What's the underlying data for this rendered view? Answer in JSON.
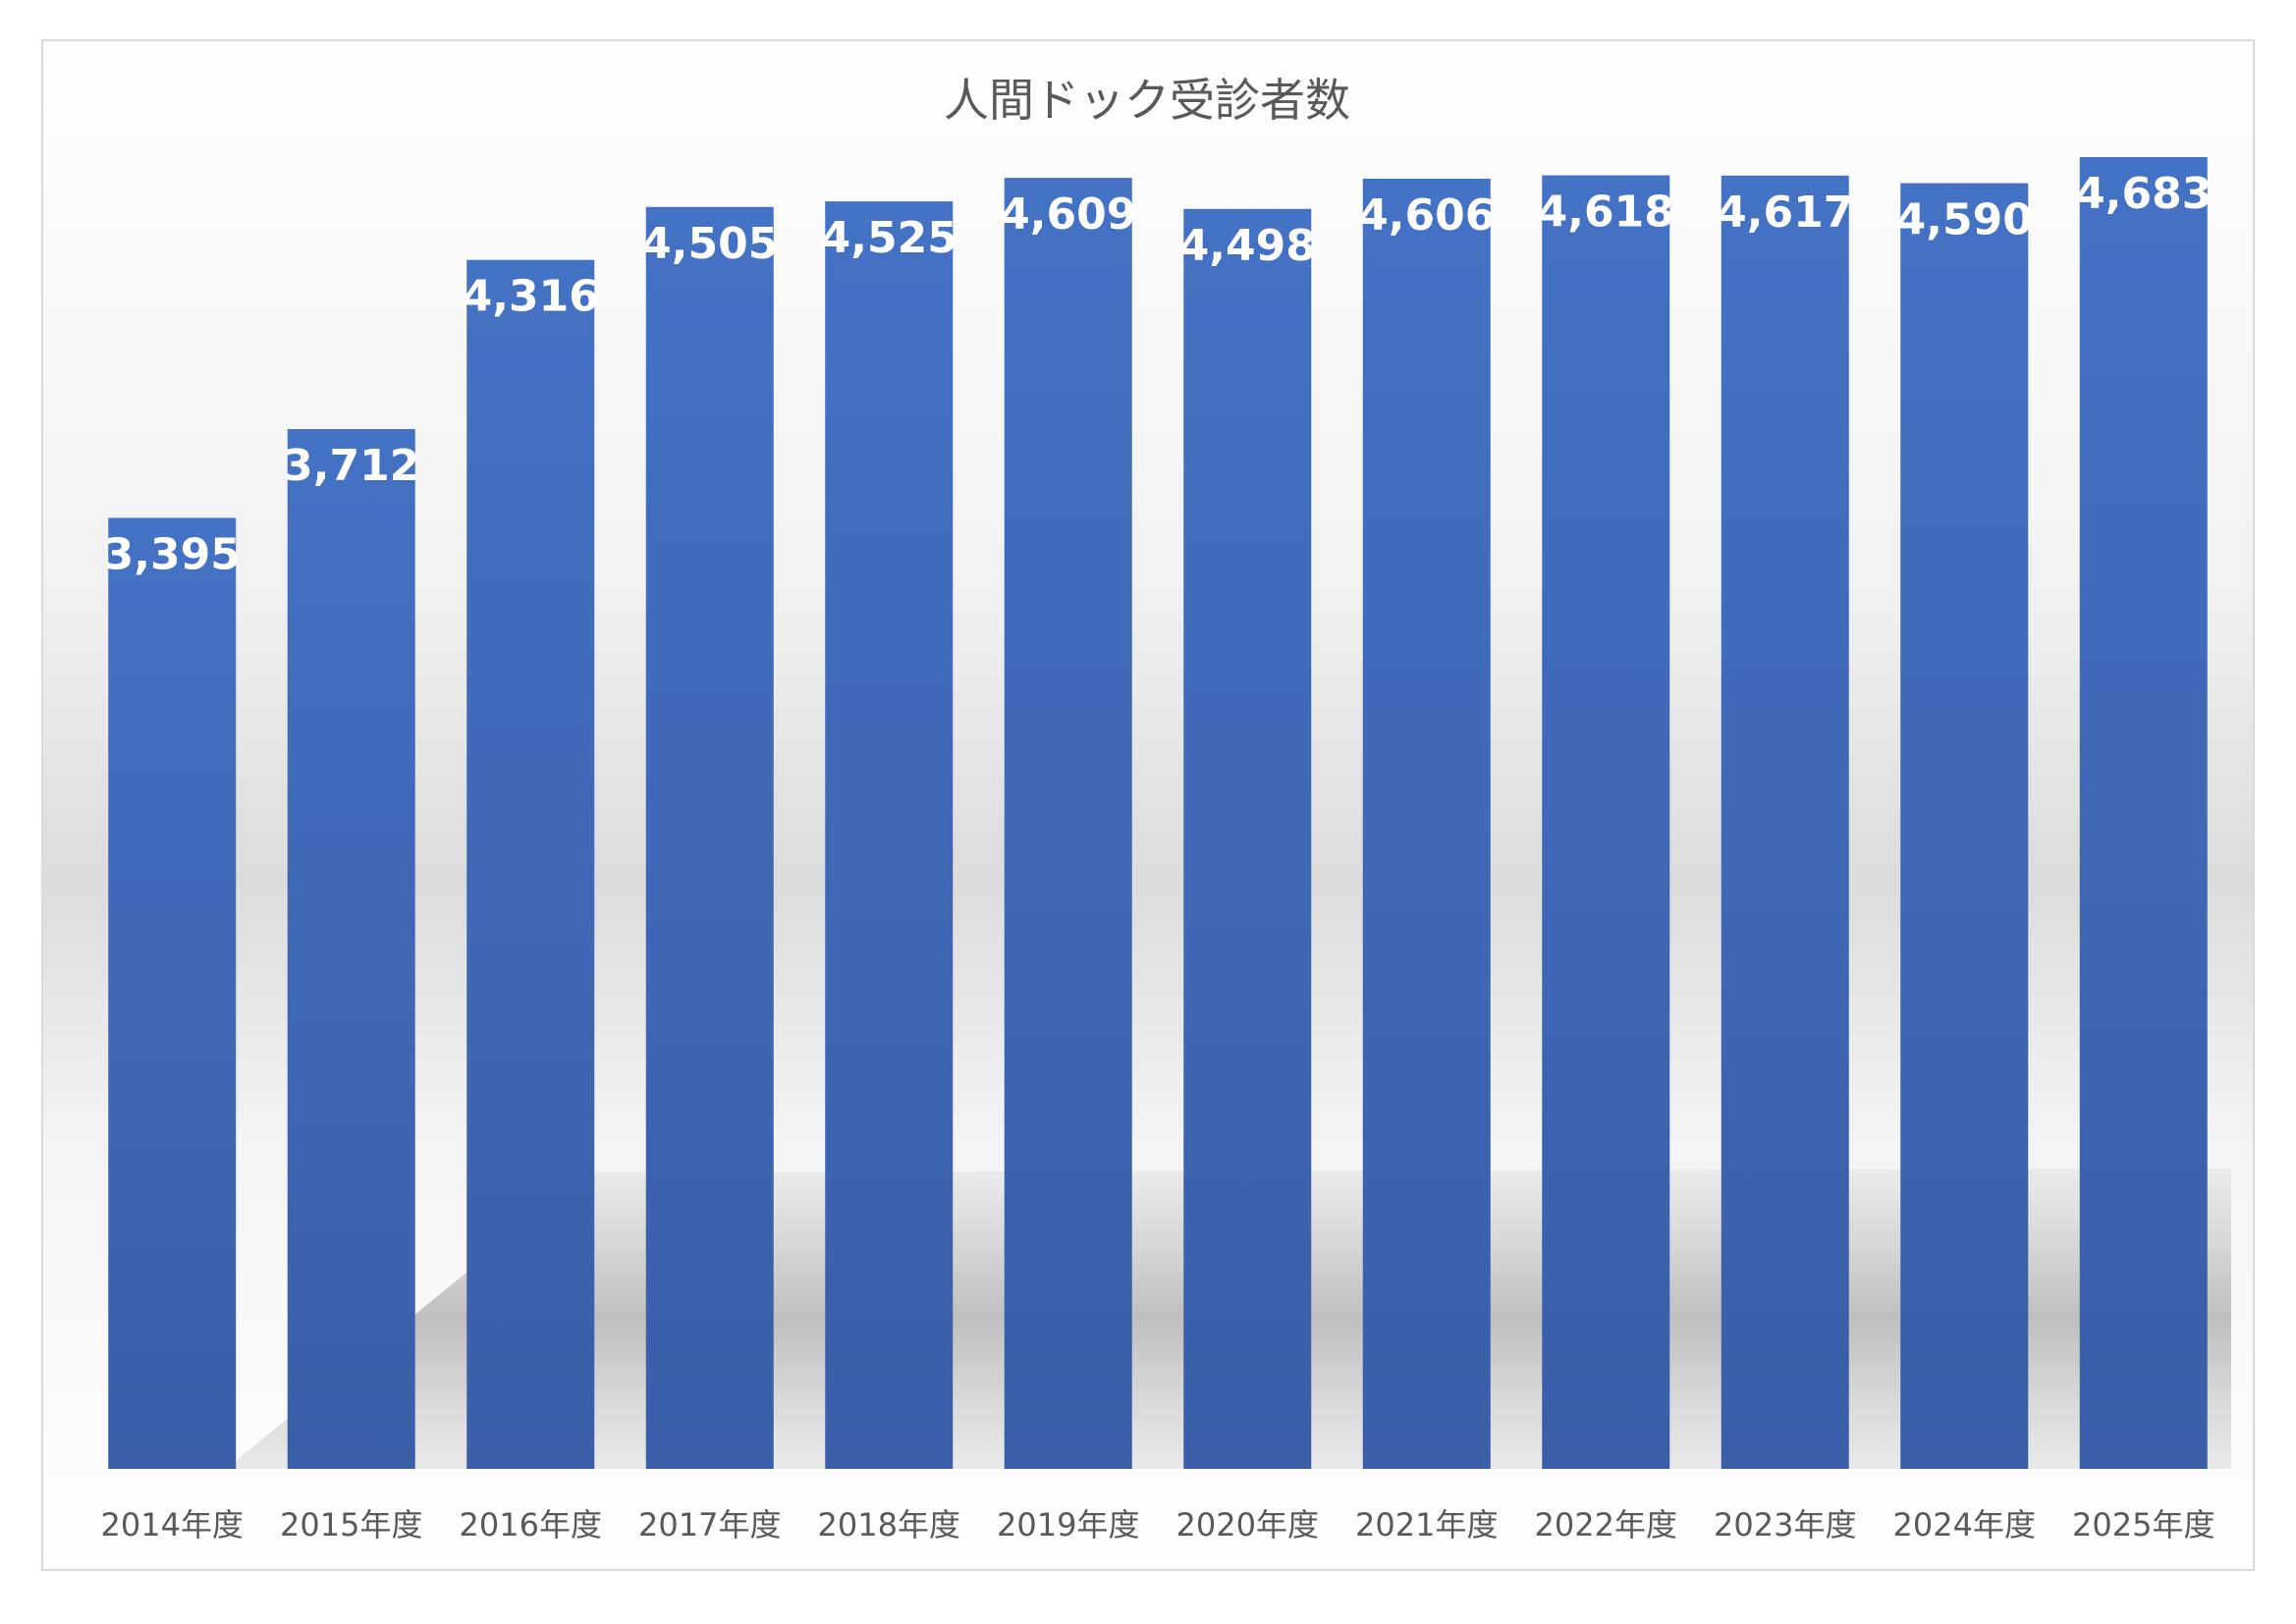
{
  "chart_data": {
    "type": "bar",
    "title": "人間ドック受診者数",
    "categories": [
      "2014年度",
      "2015年度",
      "2016年度",
      "2017年度",
      "2018年度",
      "2019年度",
      "2020年度",
      "2021年度",
      "2022年度",
      "2023年度",
      "2024年度",
      "2025年度"
    ],
    "values": [
      3395,
      3712,
      4316,
      4505,
      4525,
      4609,
      4498,
      4606,
      4618,
      4617,
      4590,
      4683
    ],
    "value_labels": [
      "3,395",
      "3,712",
      "4,316",
      "4,505",
      "4,525",
      "4,609",
      "4,498",
      "4,606",
      "4,618",
      "4,617",
      "4,590",
      "4,683"
    ],
    "xlabel": "",
    "ylabel": "",
    "ylim": [
      0,
      4800
    ],
    "grid": false,
    "legend": "none",
    "colors": {
      "bar_top": "#4472c4",
      "bar_bottom": "#3a5ea8",
      "label": "#ffffff",
      "text": "#595959"
    }
  }
}
